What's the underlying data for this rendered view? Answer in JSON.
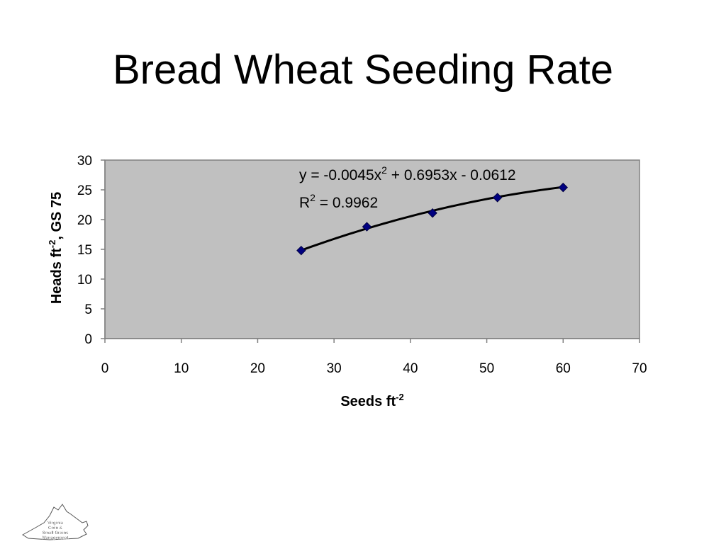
{
  "slide": {
    "title": "Bread Wheat Seeding Rate"
  },
  "chart_data": {
    "type": "scatter",
    "xlabel": "Seeds ft",
    "xlabel_sup": "-2",
    "ylabel": "Heads ft",
    "ylabel_sup": "-2",
    "ylabel_suffix": ", GS 75",
    "xlim": [
      0,
      70
    ],
    "ylim": [
      0,
      30
    ],
    "x_ticks": [
      0,
      10,
      20,
      30,
      40,
      50,
      60,
      70
    ],
    "y_ticks": [
      0,
      5,
      10,
      15,
      20,
      25,
      30
    ],
    "grid": false,
    "plot_background": "#c0c0c0",
    "series": [
      {
        "x": [
          25.7,
          34.3,
          42.9,
          51.4,
          60.0
        ],
        "y": [
          14.8,
          18.8,
          21.1,
          23.7,
          25.4
        ],
        "marker": "diamond",
        "marker_color": "#000080"
      }
    ],
    "trendline": {
      "type": "polynomial",
      "order": 2,
      "coefficients": [
        -0.0045,
        0.6953,
        -0.0612
      ],
      "x_range": [
        25.7,
        60.0
      ],
      "color": "#000000",
      "equation_text": {
        "part1": "y = -0.0045x",
        "sup": "2",
        "part2": " + 0.6953x - 0.0612"
      },
      "r2_text": {
        "part1": "R",
        "sup": "2",
        "part2": " = 0.9962"
      }
    }
  },
  "logo": {
    "line1": "Virginia",
    "line2": "Corn &",
    "line3": "Small Grains",
    "line4": "Management"
  }
}
